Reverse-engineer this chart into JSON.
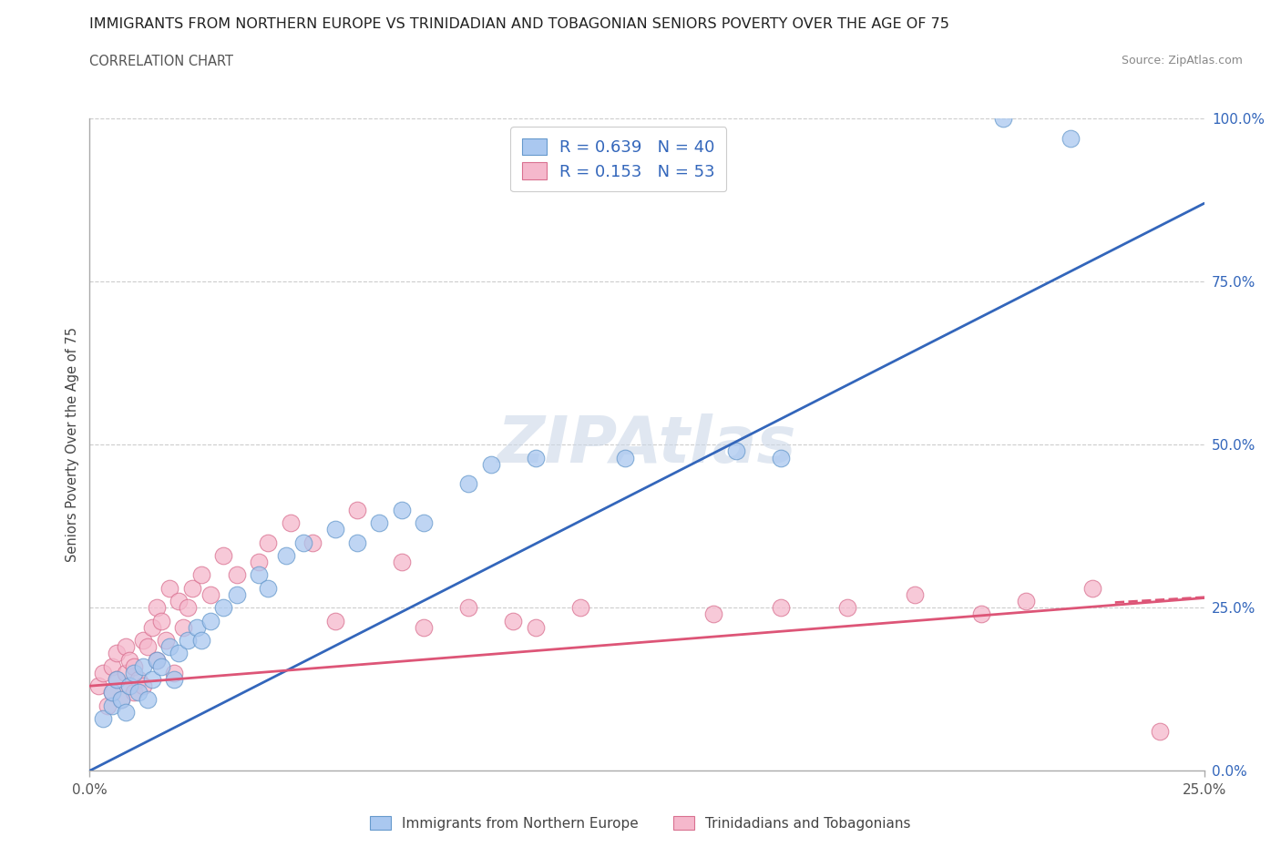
{
  "title": "IMMIGRANTS FROM NORTHERN EUROPE VS TRINIDADIAN AND TOBAGONIAN SENIORS POVERTY OVER THE AGE OF 75",
  "subtitle": "CORRELATION CHART",
  "source": "Source: ZipAtlas.com",
  "ylabel": "Seniors Poverty Over the Age of 75",
  "blue_label": "Immigrants from Northern Europe",
  "pink_label": "Trinidadians and Tobagonians",
  "blue_R": "0.639",
  "blue_N": "40",
  "pink_R": "0.153",
  "pink_N": "53",
  "blue_color": "#aac8f0",
  "pink_color": "#f5b8cc",
  "blue_edge_color": "#6699cc",
  "pink_edge_color": "#d97090",
  "blue_line_color": "#3366bb",
  "pink_line_color": "#dd5577",
  "watermark_color": "#ccd8e8",
  "background_color": "#ffffff",
  "grid_color": "#cccccc",
  "blue_scatter_x": [
    0.003,
    0.005,
    0.005,
    0.006,
    0.007,
    0.008,
    0.009,
    0.01,
    0.011,
    0.012,
    0.013,
    0.014,
    0.015,
    0.016,
    0.018,
    0.019,
    0.02,
    0.022,
    0.024,
    0.025,
    0.027,
    0.03,
    0.033,
    0.038,
    0.04,
    0.044,
    0.048,
    0.055,
    0.06,
    0.065,
    0.07,
    0.075,
    0.085,
    0.09,
    0.1,
    0.12,
    0.145,
    0.155,
    0.205,
    0.22
  ],
  "blue_scatter_y": [
    0.08,
    0.1,
    0.12,
    0.14,
    0.11,
    0.09,
    0.13,
    0.15,
    0.12,
    0.16,
    0.11,
    0.14,
    0.17,
    0.16,
    0.19,
    0.14,
    0.18,
    0.2,
    0.22,
    0.2,
    0.23,
    0.25,
    0.27,
    0.3,
    0.28,
    0.33,
    0.35,
    0.37,
    0.35,
    0.38,
    0.4,
    0.38,
    0.44,
    0.47,
    0.48,
    0.48,
    0.49,
    0.48,
    1.0,
    0.97
  ],
  "pink_scatter_x": [
    0.002,
    0.003,
    0.004,
    0.005,
    0.005,
    0.006,
    0.006,
    0.007,
    0.008,
    0.008,
    0.009,
    0.009,
    0.01,
    0.01,
    0.011,
    0.012,
    0.012,
    0.013,
    0.014,
    0.015,
    0.015,
    0.016,
    0.017,
    0.018,
    0.019,
    0.02,
    0.021,
    0.022,
    0.023,
    0.025,
    0.027,
    0.03,
    0.033,
    0.038,
    0.04,
    0.045,
    0.05,
    0.055,
    0.06,
    0.07,
    0.075,
    0.085,
    0.095,
    0.1,
    0.11,
    0.14,
    0.155,
    0.17,
    0.185,
    0.2,
    0.21,
    0.225,
    0.24
  ],
  "pink_scatter_y": [
    0.13,
    0.15,
    0.1,
    0.12,
    0.16,
    0.14,
    0.18,
    0.11,
    0.15,
    0.19,
    0.13,
    0.17,
    0.12,
    0.16,
    0.14,
    0.2,
    0.13,
    0.19,
    0.22,
    0.17,
    0.25,
    0.23,
    0.2,
    0.28,
    0.15,
    0.26,
    0.22,
    0.25,
    0.28,
    0.3,
    0.27,
    0.33,
    0.3,
    0.32,
    0.35,
    0.38,
    0.35,
    0.23,
    0.4,
    0.32,
    0.22,
    0.25,
    0.23,
    0.22,
    0.25,
    0.24,
    0.25,
    0.25,
    0.27,
    0.24,
    0.26,
    0.28,
    0.06
  ],
  "blue_line_x0": 0.0,
  "blue_line_y0": 0.0,
  "blue_line_x1": 0.25,
  "blue_line_y1": 0.87,
  "pink_line_x0": 0.0,
  "pink_line_y0": 0.13,
  "pink_line_x1": 0.25,
  "pink_line_y1": 0.265,
  "xlim": [
    0.0,
    0.25
  ],
  "ylim": [
    0.0,
    1.0
  ],
  "xticks": [
    0.0,
    0.25
  ],
  "yticks": [
    0.0,
    0.25,
    0.5,
    0.75,
    1.0
  ],
  "xtick_labels": [
    "0.0%",
    "25.0%"
  ],
  "ytick_labels": [
    "0.0%",
    "25.0%",
    "50.0%",
    "75.0%",
    "100.0%"
  ]
}
